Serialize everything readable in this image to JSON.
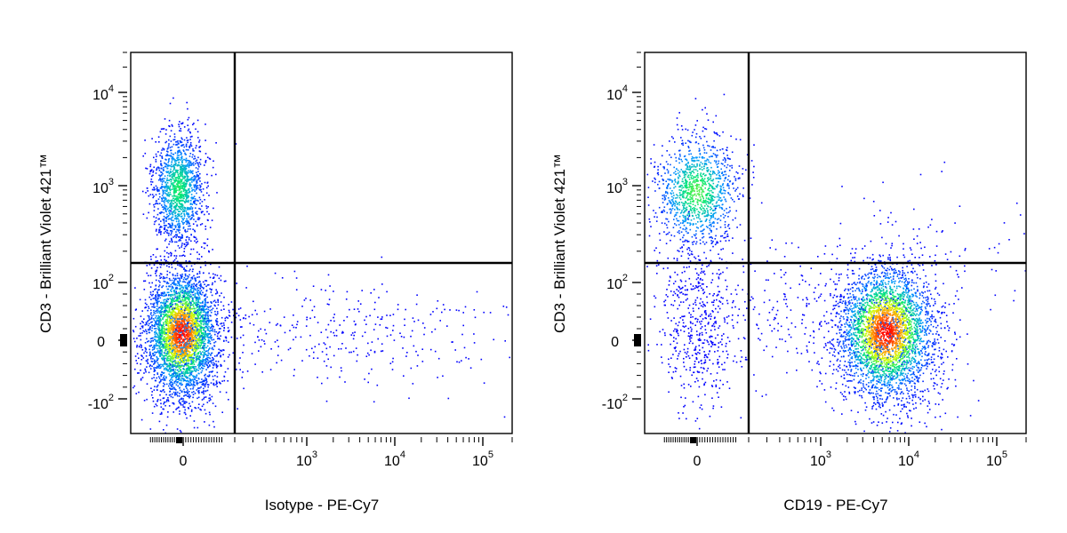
{
  "chart_data": [
    {
      "type": "scatter",
      "subtype": "flow-cytometry-density-dot-plot",
      "xlabel": "Isotype - PE-Cy7",
      "ylabel": "CD3 - Brilliant Violet 421™",
      "x_scale": "biexponential",
      "y_scale": "biexponential",
      "x_tick_labels": [
        "0",
        "10^3",
        "10^4",
        "10^5"
      ],
      "y_tick_labels": [
        "10^4",
        "10^3",
        "10^2",
        "0",
        "-10^2"
      ],
      "quadrant_gate": {
        "x": 200,
        "y": 150
      },
      "color_scale": [
        "#0000ff",
        "#00c0ff",
        "#00ff80",
        "#ffff00",
        "#ff8000",
        "#ff0000"
      ],
      "populations": [
        {
          "center": [
            0,
            900
          ],
          "size": 1500,
          "peak_color": "#00c060"
        },
        {
          "center": [
            0,
            10
          ],
          "size": 3500,
          "peak_color": "#ff0000"
        },
        {
          "center": [
            2000,
            20
          ],
          "size": 350,
          "peak_color": "#0000ff"
        }
      ]
    },
    {
      "type": "scatter",
      "subtype": "flow-cytometry-density-dot-plot",
      "xlabel": "CD19 - PE-Cy7",
      "ylabel": "CD3 - Brilliant Violet 421™",
      "x_scale": "biexponential",
      "y_scale": "biexponential",
      "x_tick_labels": [
        "0",
        "10^3",
        "10^4",
        "10^5"
      ],
      "y_tick_labels": [
        "10^4",
        "10^3",
        "10^2",
        "0",
        "-10^2"
      ],
      "quadrant_gate": {
        "x": 200,
        "y": 150
      },
      "color_scale": [
        "#0000ff",
        "#00c0ff",
        "#00ff80",
        "#ffff00",
        "#ff8000",
        "#ff0000"
      ],
      "populations": [
        {
          "center": [
            0,
            800
          ],
          "size": 1200,
          "peak_color": "#00c060"
        },
        {
          "center": [
            0,
            20
          ],
          "size": 500,
          "peak_color": "#0000ff"
        },
        {
          "center": [
            6000,
            10
          ],
          "size": 3200,
          "peak_color": "#ff0000"
        },
        {
          "center": [
            3000,
            300
          ],
          "size": 200,
          "peak_color": "#0000ff"
        }
      ]
    }
  ]
}
